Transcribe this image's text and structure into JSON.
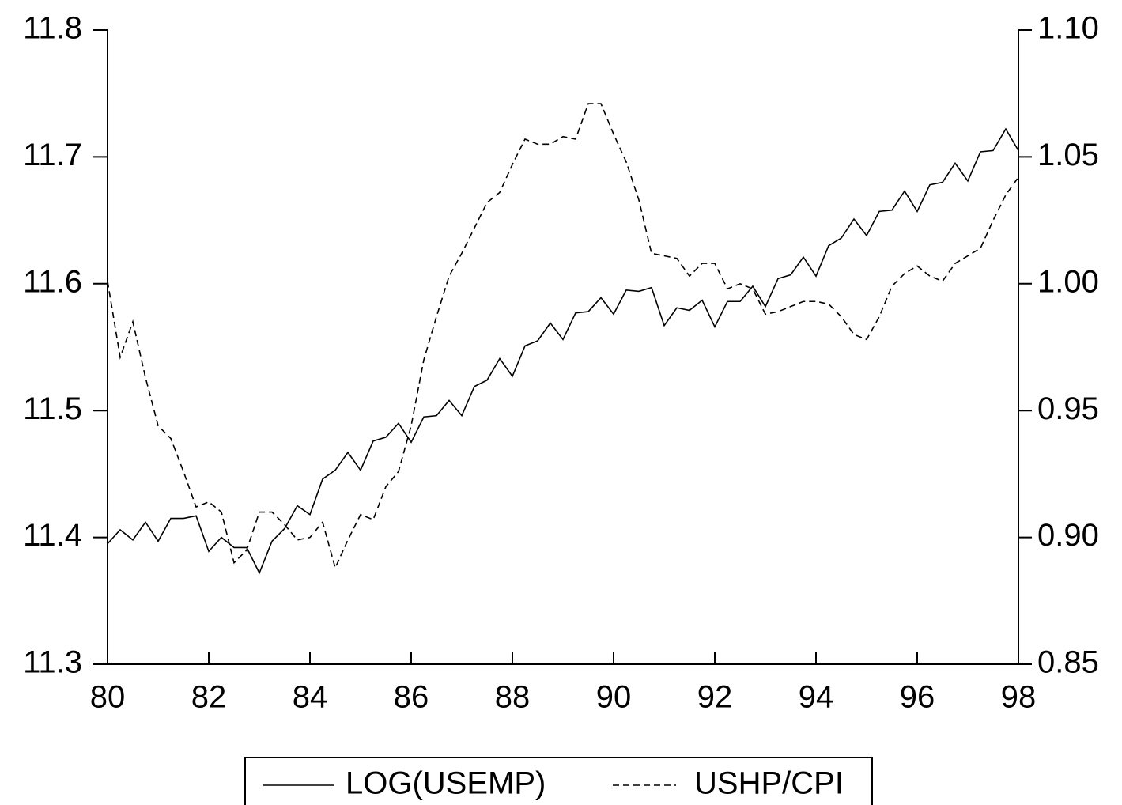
{
  "chart_data": {
    "type": "line",
    "x": [
      80,
      80.25,
      80.5,
      80.75,
      81,
      81.25,
      81.5,
      81.75,
      82,
      82.25,
      82.5,
      82.75,
      83,
      83.25,
      83.5,
      83.75,
      84,
      84.25,
      84.5,
      84.75,
      85,
      85.25,
      85.5,
      85.75,
      86,
      86.25,
      86.5,
      86.75,
      87,
      87.25,
      87.5,
      87.75,
      88,
      88.25,
      88.5,
      88.75,
      89,
      89.25,
      89.5,
      89.75,
      90,
      90.25,
      90.5,
      90.75,
      91,
      91.25,
      91.5,
      91.75,
      92,
      92.25,
      92.5,
      92.75,
      93,
      93.25,
      93.5,
      93.75,
      94,
      94.25,
      94.5,
      94.75,
      95,
      95.25,
      95.5,
      95.75,
      96,
      96.25,
      96.5,
      96.75,
      97,
      97.25,
      97.5,
      97.75,
      98
    ],
    "series": [
      {
        "name": "LOG(USEMP)",
        "color": "#000000",
        "line_style": "solid",
        "values": [
          11.395,
          11.406,
          11.398,
          11.412,
          11.397,
          11.415,
          11.415,
          11.417,
          11.389,
          11.4,
          11.392,
          11.392,
          11.372,
          11.397,
          11.407,
          11.425,
          11.418,
          11.446,
          11.453,
          11.467,
          11.453,
          11.476,
          11.479,
          11.49,
          11.475,
          11.495,
          11.496,
          11.508,
          11.496,
          11.519,
          11.524,
          11.541,
          11.527,
          11.551,
          11.555,
          11.569,
          11.556,
          11.577,
          11.578,
          11.589,
          11.576,
          11.595,
          11.594,
          11.597,
          11.567,
          11.581,
          11.579,
          11.587,
          11.566,
          11.586,
          11.586,
          11.598,
          11.582,
          11.604,
          11.607,
          11.621,
          11.606,
          11.63,
          11.636,
          11.651,
          11.638,
          11.657,
          11.658,
          11.673,
          11.657,
          11.678,
          11.68,
          11.695,
          11.681,
          11.704,
          11.705,
          11.722,
          11.705
        ]
      },
      {
        "name": "USHP/CPI",
        "color": "#000000",
        "line_style": "dashed",
        "axis": "y2",
        "values": [
          1.001,
          0.971,
          0.985,
          0.963,
          0.944,
          0.939,
          0.926,
          0.912,
          0.914,
          0.91,
          0.89,
          0.895,
          0.91,
          0.91,
          0.905,
          0.899,
          0.9,
          0.906,
          0.888,
          0.899,
          0.909,
          0.907,
          0.92,
          0.926,
          0.944,
          0.97,
          0.987,
          1.003,
          1.012,
          1.022,
          1.032,
          1.036,
          1.047,
          1.057,
          1.055,
          1.055,
          1.058,
          1.057,
          1.071,
          1.071,
          1.059,
          1.048,
          1.033,
          1.012,
          1.011,
          1.01,
          1.003,
          1.008,
          1.008,
          0.998,
          1.0,
          0.998,
          0.988,
          0.989,
          0.991,
          0.993,
          0.993,
          0.992,
          0.987,
          0.98,
          0.978,
          0.987,
          0.999,
          1.004,
          1.007,
          1.003,
          1.001,
          1.008,
          1.011,
          1.014,
          1.025,
          1.035,
          1.042
        ]
      }
    ],
    "xlim": [
      80,
      98
    ],
    "xticks": [
      80,
      82,
      84,
      86,
      88,
      90,
      92,
      94,
      96,
      98
    ],
    "ylim": [
      11.3,
      11.8
    ],
    "yticks": [
      11.3,
      11.4,
      11.5,
      11.6,
      11.7,
      11.8
    ],
    "y2lim": [
      0.85,
      1.1
    ],
    "y2ticks": [
      0.85,
      {
        "value": 0.9,
        "label": "0.90"
      },
      0.95,
      {
        "value": 1.0,
        "label": "1.00"
      },
      1.05,
      {
        "value": 1.1,
        "label": "1.10"
      }
    ],
    "grid": false,
    "legend": "bottom"
  }
}
